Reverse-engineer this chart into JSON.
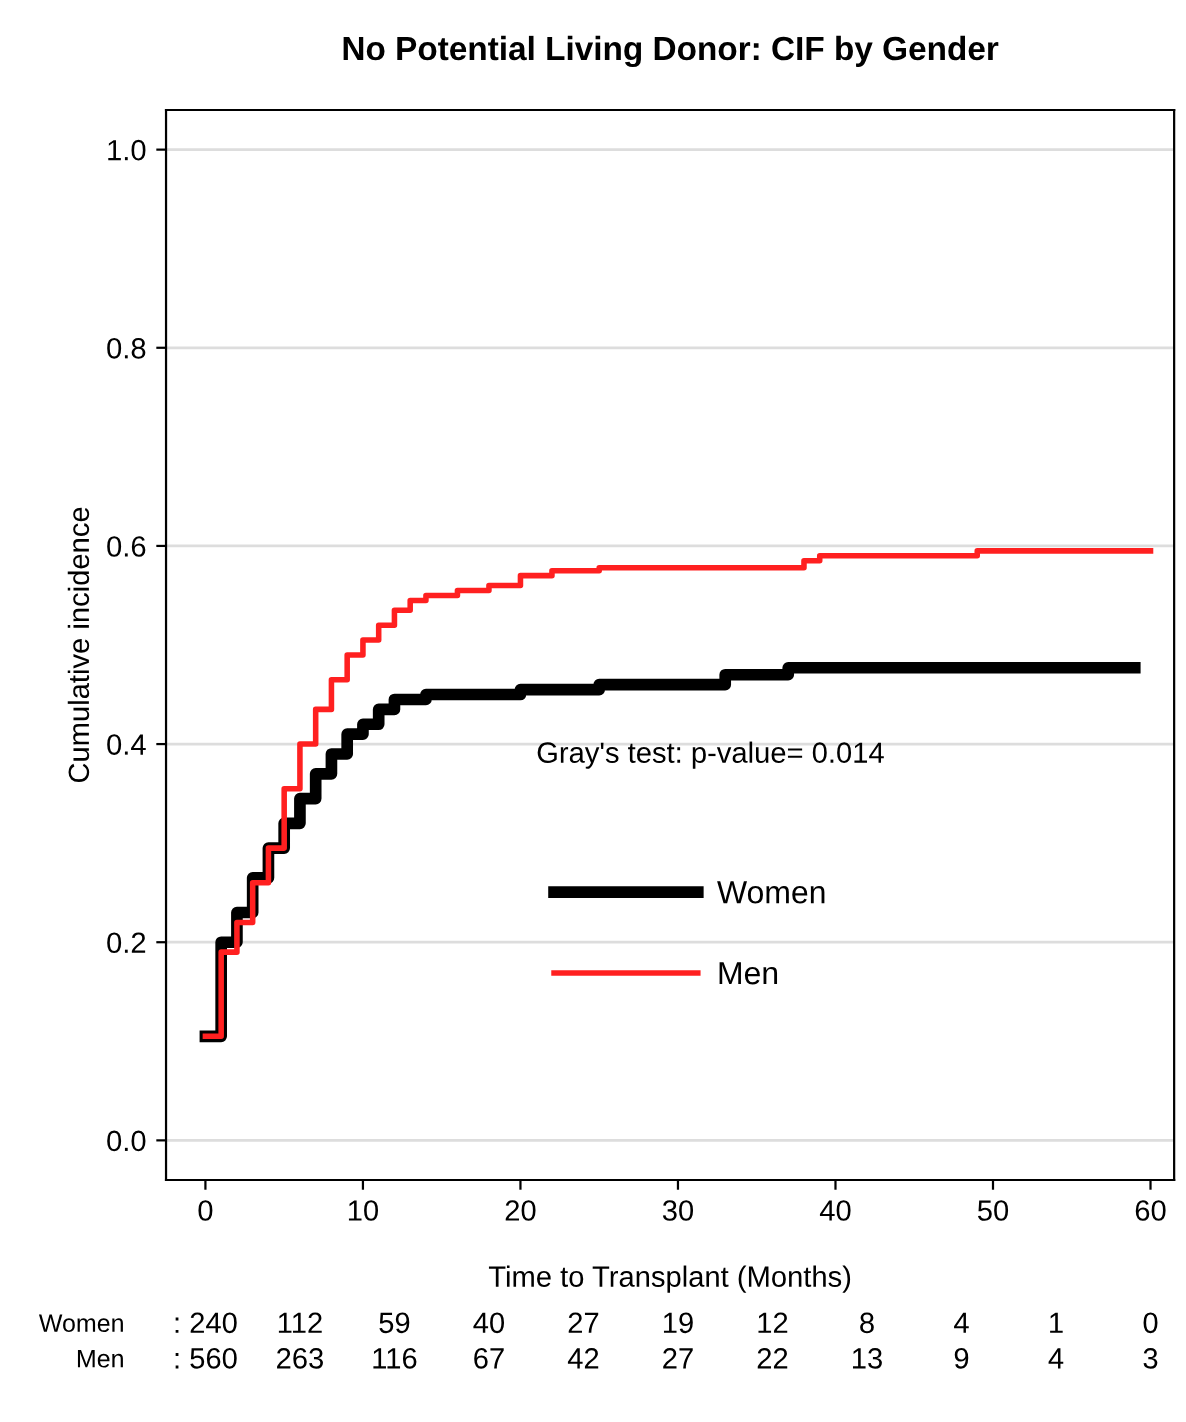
{
  "chart_data": {
    "type": "step",
    "title": "No Potential Living Donor: CIF by Gender",
    "xlabel": "Time to Transplant (Months)",
    "ylabel": "Cumulative incidence",
    "xlim": [
      -2.5,
      61.5
    ],
    "ylim": [
      -0.04,
      1.04
    ],
    "xticks": [
      0,
      10,
      20,
      30,
      40,
      50,
      60
    ],
    "yticks": [
      {
        "value": 0,
        "label": "0.0"
      },
      0.2,
      0.4,
      0.6,
      0.8,
      {
        "value": 1,
        "label": "1.0"
      }
    ],
    "grid": "y",
    "legend": "bottom",
    "series": [
      {
        "name": "Women",
        "color": "#000000",
        "x": [
          0,
          1,
          2,
          3,
          4,
          5,
          6,
          7,
          8,
          9,
          10,
          11,
          12,
          14,
          20,
          25,
          33,
          37,
          59
        ],
        "values": [
          0.105,
          0.2,
          0.23,
          0.265,
          0.295,
          0.32,
          0.345,
          0.37,
          0.39,
          0.41,
          0.42,
          0.435,
          0.445,
          0.45,
          0.455,
          0.46,
          0.47,
          0.477,
          0.477
        ]
      },
      {
        "name": "Men",
        "color": "#ff2020",
        "x": [
          0,
          1,
          2,
          3,
          4,
          5,
          6,
          7,
          8,
          9,
          10,
          11,
          12,
          13,
          14,
          16,
          18,
          20,
          22,
          25,
          38,
          39,
          49,
          60
        ],
        "values": [
          0.105,
          0.19,
          0.22,
          0.26,
          0.295,
          0.355,
          0.4,
          0.435,
          0.465,
          0.49,
          0.505,
          0.52,
          0.535,
          0.545,
          0.55,
          0.555,
          0.56,
          0.57,
          0.575,
          0.578,
          0.585,
          0.59,
          0.595,
          0.595
        ]
      }
    ],
    "annotations": [
      "Gray's test: p-value= 0.014",
      "Women",
      ": 240",
      "112",
      "59",
      "40",
      "27",
      "19",
      "12",
      "8",
      "4",
      "1",
      "0",
      "Men",
      ": 560",
      "263",
      "116",
      "67",
      "42",
      "27",
      "22",
      "13",
      "9",
      "4",
      "3"
    ]
  }
}
